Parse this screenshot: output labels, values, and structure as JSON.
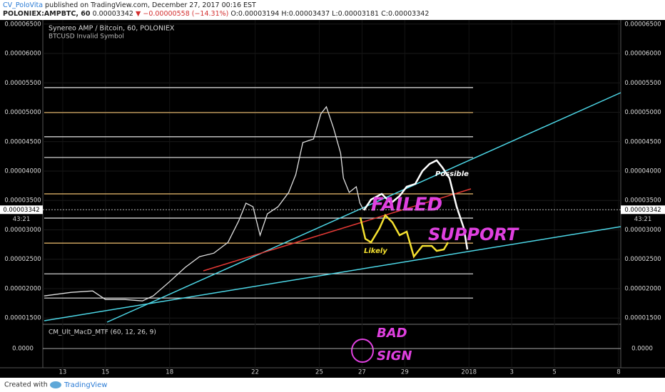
{
  "header": {
    "author": "CV_PoloVita",
    "published": "published on TradingView.com, December 27, 2017 00:16 EST",
    "symbol": "POLONIEX:AMPBTC, 60",
    "last": "0.00003342",
    "change": "−0.00000558 (−14.31%)",
    "open": "O:0.00003194",
    "high": "H:0.00003437",
    "low": "L:0.00003181",
    "close": "C:0.00003342"
  },
  "chart_data": {
    "type": "line",
    "title": "Synereo AMP / Bitcoin, 60, POLONIEX",
    "subtitle": "BTCUSD Invalid Symbol",
    "color": "#e0e0e0",
    "x": [
      12.13,
      13.4,
      14.4,
      15,
      15.9,
      16.73,
      17.23,
      18,
      18.73,
      19.4,
      20.07,
      20.73,
      21.23,
      21.57,
      21.9,
      22.23,
      22.57,
      23.07,
      23.57,
      23.9,
      24.23,
      24.73,
      25.07,
      25.33,
      25.67,
      26,
      26.13,
      26.4,
      26.73,
      26.9,
      27.07
    ],
    "values": [
      1.876e-05,
      1.937e-05,
      1.961e-05,
      1.816e-05,
      1.816e-05,
      1.791e-05,
      1.876e-05,
      2.119e-05,
      2.362e-05,
      2.544e-05,
      2.604e-05,
      2.786e-05,
      3.15e-05,
      3.454e-05,
      3.393e-05,
      2.908e-05,
      3.272e-05,
      3.393e-05,
      3.636e-05,
      3.939e-05,
      4.485e-05,
      4.546e-05,
      4.971e-05,
      5.092e-05,
      4.728e-05,
      4.303e-05,
      3.879e-05,
      3.636e-05,
      3.733e-05,
      3.454e-05,
      3.342e-05
    ],
    "xlim": [
      12.07,
      39.1
    ],
    "xticks": [
      13,
      15,
      18,
      22,
      25,
      27,
      29,
      {
        "value": 32,
        "label": "2018"
      },
      {
        "value": 34,
        "label": "3"
      },
      {
        "value": 36,
        "label": "5"
      },
      {
        "value": 39,
        "label": "8"
      }
    ],
    "ylim": [
      1.43e-05,
      6.57e-05
    ],
    "yticks": [
      {
        "value": 6.5e-05,
        "label": "0.00006500"
      },
      {
        "value": 6e-05,
        "label": "0.00006000"
      },
      {
        "value": 5.5e-05,
        "label": "0.00005500"
      },
      {
        "value": 5e-05,
        "label": "0.00005000"
      },
      {
        "value": 4.5e-05,
        "label": "0.00004500"
      },
      {
        "value": 4e-05,
        "label": "0.00004000"
      },
      {
        "value": 3.5e-05,
        "label": "0.00003500"
      },
      {
        "value": 3e-05,
        "label": "0.00003000"
      },
      {
        "value": 2.5e-05,
        "label": "0.00002500"
      },
      {
        "value": 2e-05,
        "label": "0.00002000"
      },
      {
        "value": 1.5e-05,
        "label": "0.00001500"
      }
    ],
    "levels": [
      5.42e-05,
      4.995e-05,
      4.583e-05,
      4.231e-05,
      3.612e-05,
      3.2e-05,
      2.774e-05,
      2.252e-05,
      1.84e-05
    ],
    "level_colors": [
      "#e8e8e8",
      "#f0c070",
      "#e8e8e8",
      "#e8e8e8",
      "#f0c070",
      "#e8e8e8",
      "#f0c070",
      "#e8e8e8",
      "#e8e8e8"
    ],
    "last_price": {
      "value": 3.342e-05,
      "label": "0.00003342"
    },
    "countdown": "43:21",
    "annotations": {
      "possible": "Possible",
      "likely": "Likely",
      "failed": "FAILED",
      "support": "SUPPORT",
      "bad": "BAD",
      "sign": "SIGN"
    }
  },
  "indicator": {
    "name": "CM_Ult_MacD_MTF (60, 12, 26, 9)",
    "zero": "0.0000"
  },
  "footer": {
    "created": "Created with",
    "brand": "TradingView"
  }
}
